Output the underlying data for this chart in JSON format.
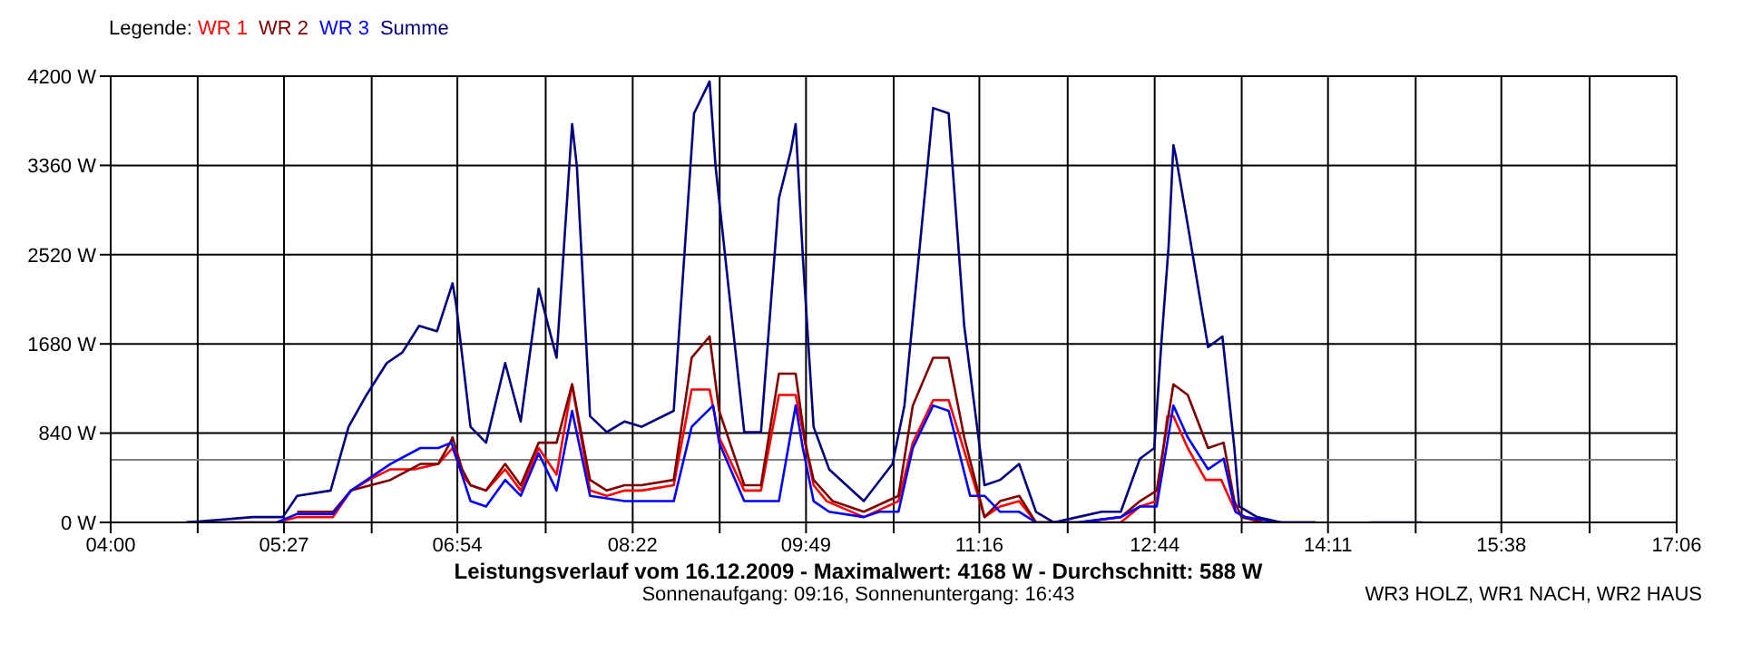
{
  "chart_data": {
    "type": "line",
    "title": "Leistungsverlauf vom 16.12.2009 - Maximalwert: 4168 W - Durchschnitt: 588 W",
    "subtitle": "Sonnenaufgang: 09:16, Sonnenuntergang: 16:43",
    "legend_title": "Legende:",
    "annotations": [
      "WR3 HOLZ, WR1 NACH, WR2 HAUS"
    ],
    "legend": "top left",
    "grid": true,
    "marker": "none",
    "line_style": "solid",
    "xlim": [
      4,
      17.1
    ],
    "xticks": [
      {
        "value": 4,
        "label": "04:00"
      },
      {
        "value": 4.7278,
        "label": null
      },
      {
        "value": 5.45,
        "label": "05:27"
      },
      {
        "value": 6.1833,
        "label": null
      },
      {
        "value": 6.9,
        "label": "06:54"
      },
      {
        "value": 7.6389,
        "label": null
      },
      {
        "value": 8.3667,
        "label": "08:22"
      },
      {
        "value": 9.0944,
        "label": null
      },
      {
        "value": 9.8167,
        "label": "09:49"
      },
      {
        "value": 10.55,
        "label": null
      },
      {
        "value": 11.2667,
        "label": "11:16"
      },
      {
        "value": 12.0056,
        "label": null
      },
      {
        "value": 12.7333,
        "label": "12:44"
      },
      {
        "value": 13.4611,
        "label": null
      },
      {
        "value": 14.1833,
        "label": "14:11"
      },
      {
        "value": 14.9167,
        "label": null
      },
      {
        "value": 15.6333,
        "label": "15:38"
      },
      {
        "value": 16.3722,
        "label": null
      },
      {
        "value": 17.1,
        "label": "17:06"
      }
    ],
    "ylim": [
      0,
      4200
    ],
    "yticks": [
      {
        "value": 0,
        "label": "0 W"
      },
      {
        "value": 840,
        "label": "840 W"
      },
      {
        "value": 1680,
        "label": "1680 W"
      },
      {
        "value": 2520,
        "label": "2520 W"
      },
      {
        "value": 3360,
        "label": "3360 W"
      },
      {
        "value": 4200,
        "label": "4200 W"
      }
    ],
    "ref_lines": [
      {
        "axis": "y",
        "value": 588,
        "color": "#808080"
      }
    ],
    "series": [
      {
        "name": "WR 1",
        "color": "#ff0000",
        "x": [
          4.63,
          5.39,
          5.56,
          5.86,
          6.01,
          6.16,
          6.34,
          6.54,
          6.74,
          6.86,
          6.94,
          7.01,
          7.14,
          7.3,
          7.43,
          7.58,
          7.73,
          7.86,
          8.01,
          8.15,
          8.3,
          8.44,
          8.71,
          8.86,
          9.01,
          9.09,
          9.3,
          9.44,
          9.59,
          9.73,
          9.8,
          9.88,
          9.99,
          10.3,
          10.59,
          10.71,
          10.88,
          11.01,
          11.16,
          11.31,
          11.44,
          11.6,
          11.74,
          11.89,
          12.09,
          12.45,
          12.61,
          12.75,
          12.84,
          12.89,
          13.01,
          13.16,
          13.29,
          13.41,
          13.49,
          13.64
        ],
        "values": [
          0,
          0,
          50,
          50,
          300,
          400,
          500,
          500,
          550,
          700,
          450,
          350,
          300,
          500,
          300,
          700,
          450,
          1300,
          300,
          250,
          300,
          300,
          350,
          1250,
          1250,
          800,
          300,
          300,
          1200,
          1200,
          800,
          350,
          200,
          50,
          200,
          750,
          1150,
          1150,
          600,
          50,
          150,
          200,
          0,
          0,
          0,
          0,
          150,
          200,
          1000,
          1000,
          700,
          400,
          400,
          100,
          50,
          0
        ]
      },
      {
        "name": "WR 2",
        "color": "#800000",
        "x": [
          5.56,
          5.86,
          6.01,
          6.34,
          6.59,
          6.74,
          6.84,
          6.86,
          6.94,
          7.01,
          7.14,
          7.3,
          7.43,
          7.58,
          7.73,
          7.86,
          8.01,
          8.15,
          8.3,
          8.44,
          8.71,
          8.86,
          9.01,
          9.09,
          9.3,
          9.44,
          9.59,
          9.73,
          9.81,
          9.88,
          10.04,
          10.3,
          10.59,
          10.71,
          10.88,
          11.01,
          11.14,
          11.31,
          11.44,
          11.6,
          11.74,
          11.89,
          12.09,
          12.45,
          12.61,
          12.75,
          12.89,
          13.01,
          13.18,
          13.31,
          13.4,
          13.46,
          13.64
        ],
        "values": [
          100,
          100,
          300,
          400,
          550,
          550,
          750,
          800,
          500,
          350,
          300,
          550,
          350,
          750,
          750,
          1300,
          400,
          300,
          350,
          350,
          400,
          1550,
          1750,
          1050,
          350,
          350,
          1400,
          1400,
          750,
          400,
          200,
          100,
          250,
          1100,
          1550,
          1550,
          800,
          50,
          200,
          250,
          0,
          0,
          0,
          50,
          200,
          300,
          1300,
          1200,
          700,
          750,
          200,
          50,
          0
        ]
      },
      {
        "name": "WR 3",
        "color": "#0000ff",
        "x": [
          4.63,
          5.39,
          5.56,
          5.86,
          6.01,
          6.34,
          6.59,
          6.74,
          6.85,
          6.91,
          7.01,
          7.14,
          7.3,
          7.43,
          7.58,
          7.73,
          7.86,
          8.01,
          8.3,
          8.44,
          8.71,
          8.86,
          9.04,
          9.09,
          9.3,
          9.59,
          9.73,
          9.79,
          9.88,
          10.01,
          10.3,
          10.43,
          10.59,
          10.71,
          10.88,
          11.01,
          11.19,
          11.31,
          11.44,
          11.6,
          11.74,
          11.89,
          12.09,
          12.45,
          12.61,
          12.75,
          12.89,
          13.01,
          13.18,
          13.31,
          13.41,
          13.49,
          13.79,
          14.08
        ],
        "values": [
          0,
          0,
          80,
          80,
          300,
          550,
          700,
          700,
          750,
          550,
          200,
          150,
          400,
          250,
          650,
          300,
          1050,
          250,
          200,
          200,
          200,
          900,
          1100,
          750,
          200,
          200,
          1100,
          700,
          200,
          100,
          50,
          100,
          100,
          700,
          1100,
          1050,
          250,
          250,
          100,
          100,
          0,
          0,
          0,
          50,
          150,
          150,
          1100,
          800,
          500,
          600,
          100,
          50,
          0,
          0
        ]
      },
      {
        "name": "Summe",
        "color": "#000080",
        "x": [
          4.63,
          5.19,
          5.44,
          5.56,
          5.84,
          5.99,
          6.14,
          6.31,
          6.44,
          6.58,
          6.73,
          6.86,
          6.89,
          7.01,
          7.14,
          7.3,
          7.43,
          7.58,
          7.73,
          7.86,
          7.9,
          8.01,
          8.15,
          8.3,
          8.44,
          8.71,
          8.88,
          9.01,
          9.06,
          9.16,
          9.3,
          9.44,
          9.59,
          9.69,
          9.73,
          9.79,
          9.88,
          10.01,
          10.3,
          10.54,
          10.64,
          10.88,
          11.01,
          11.14,
          11.31,
          11.44,
          11.6,
          11.74,
          11.89,
          12.09,
          12.29,
          12.45,
          12.61,
          12.73,
          12.79,
          12.85,
          12.89,
          12.91,
          13.01,
          13.18,
          13.3,
          13.4,
          13.44,
          13.59,
          13.79,
          14.08,
          14.3,
          14.53,
          14.97
        ],
        "values": [
          0,
          50,
          50,
          250,
          300,
          900,
          1200,
          1500,
          1600,
          1850,
          1800,
          2250,
          2050,
          900,
          750,
          1500,
          950,
          2200,
          1550,
          3750,
          3350,
          1000,
          850,
          950,
          900,
          1050,
          3850,
          4150,
          3350,
          2300,
          850,
          850,
          3050,
          3500,
          3750,
          2500,
          900,
          500,
          200,
          550,
          1100,
          3900,
          3850,
          1850,
          350,
          400,
          550,
          100,
          0,
          50,
          100,
          100,
          600,
          700,
          1700,
          2600,
          3550,
          3450,
          2800,
          1650,
          1750,
          700,
          150,
          50,
          0,
          0,
          null,
          0,
          0
        ]
      }
    ]
  }
}
